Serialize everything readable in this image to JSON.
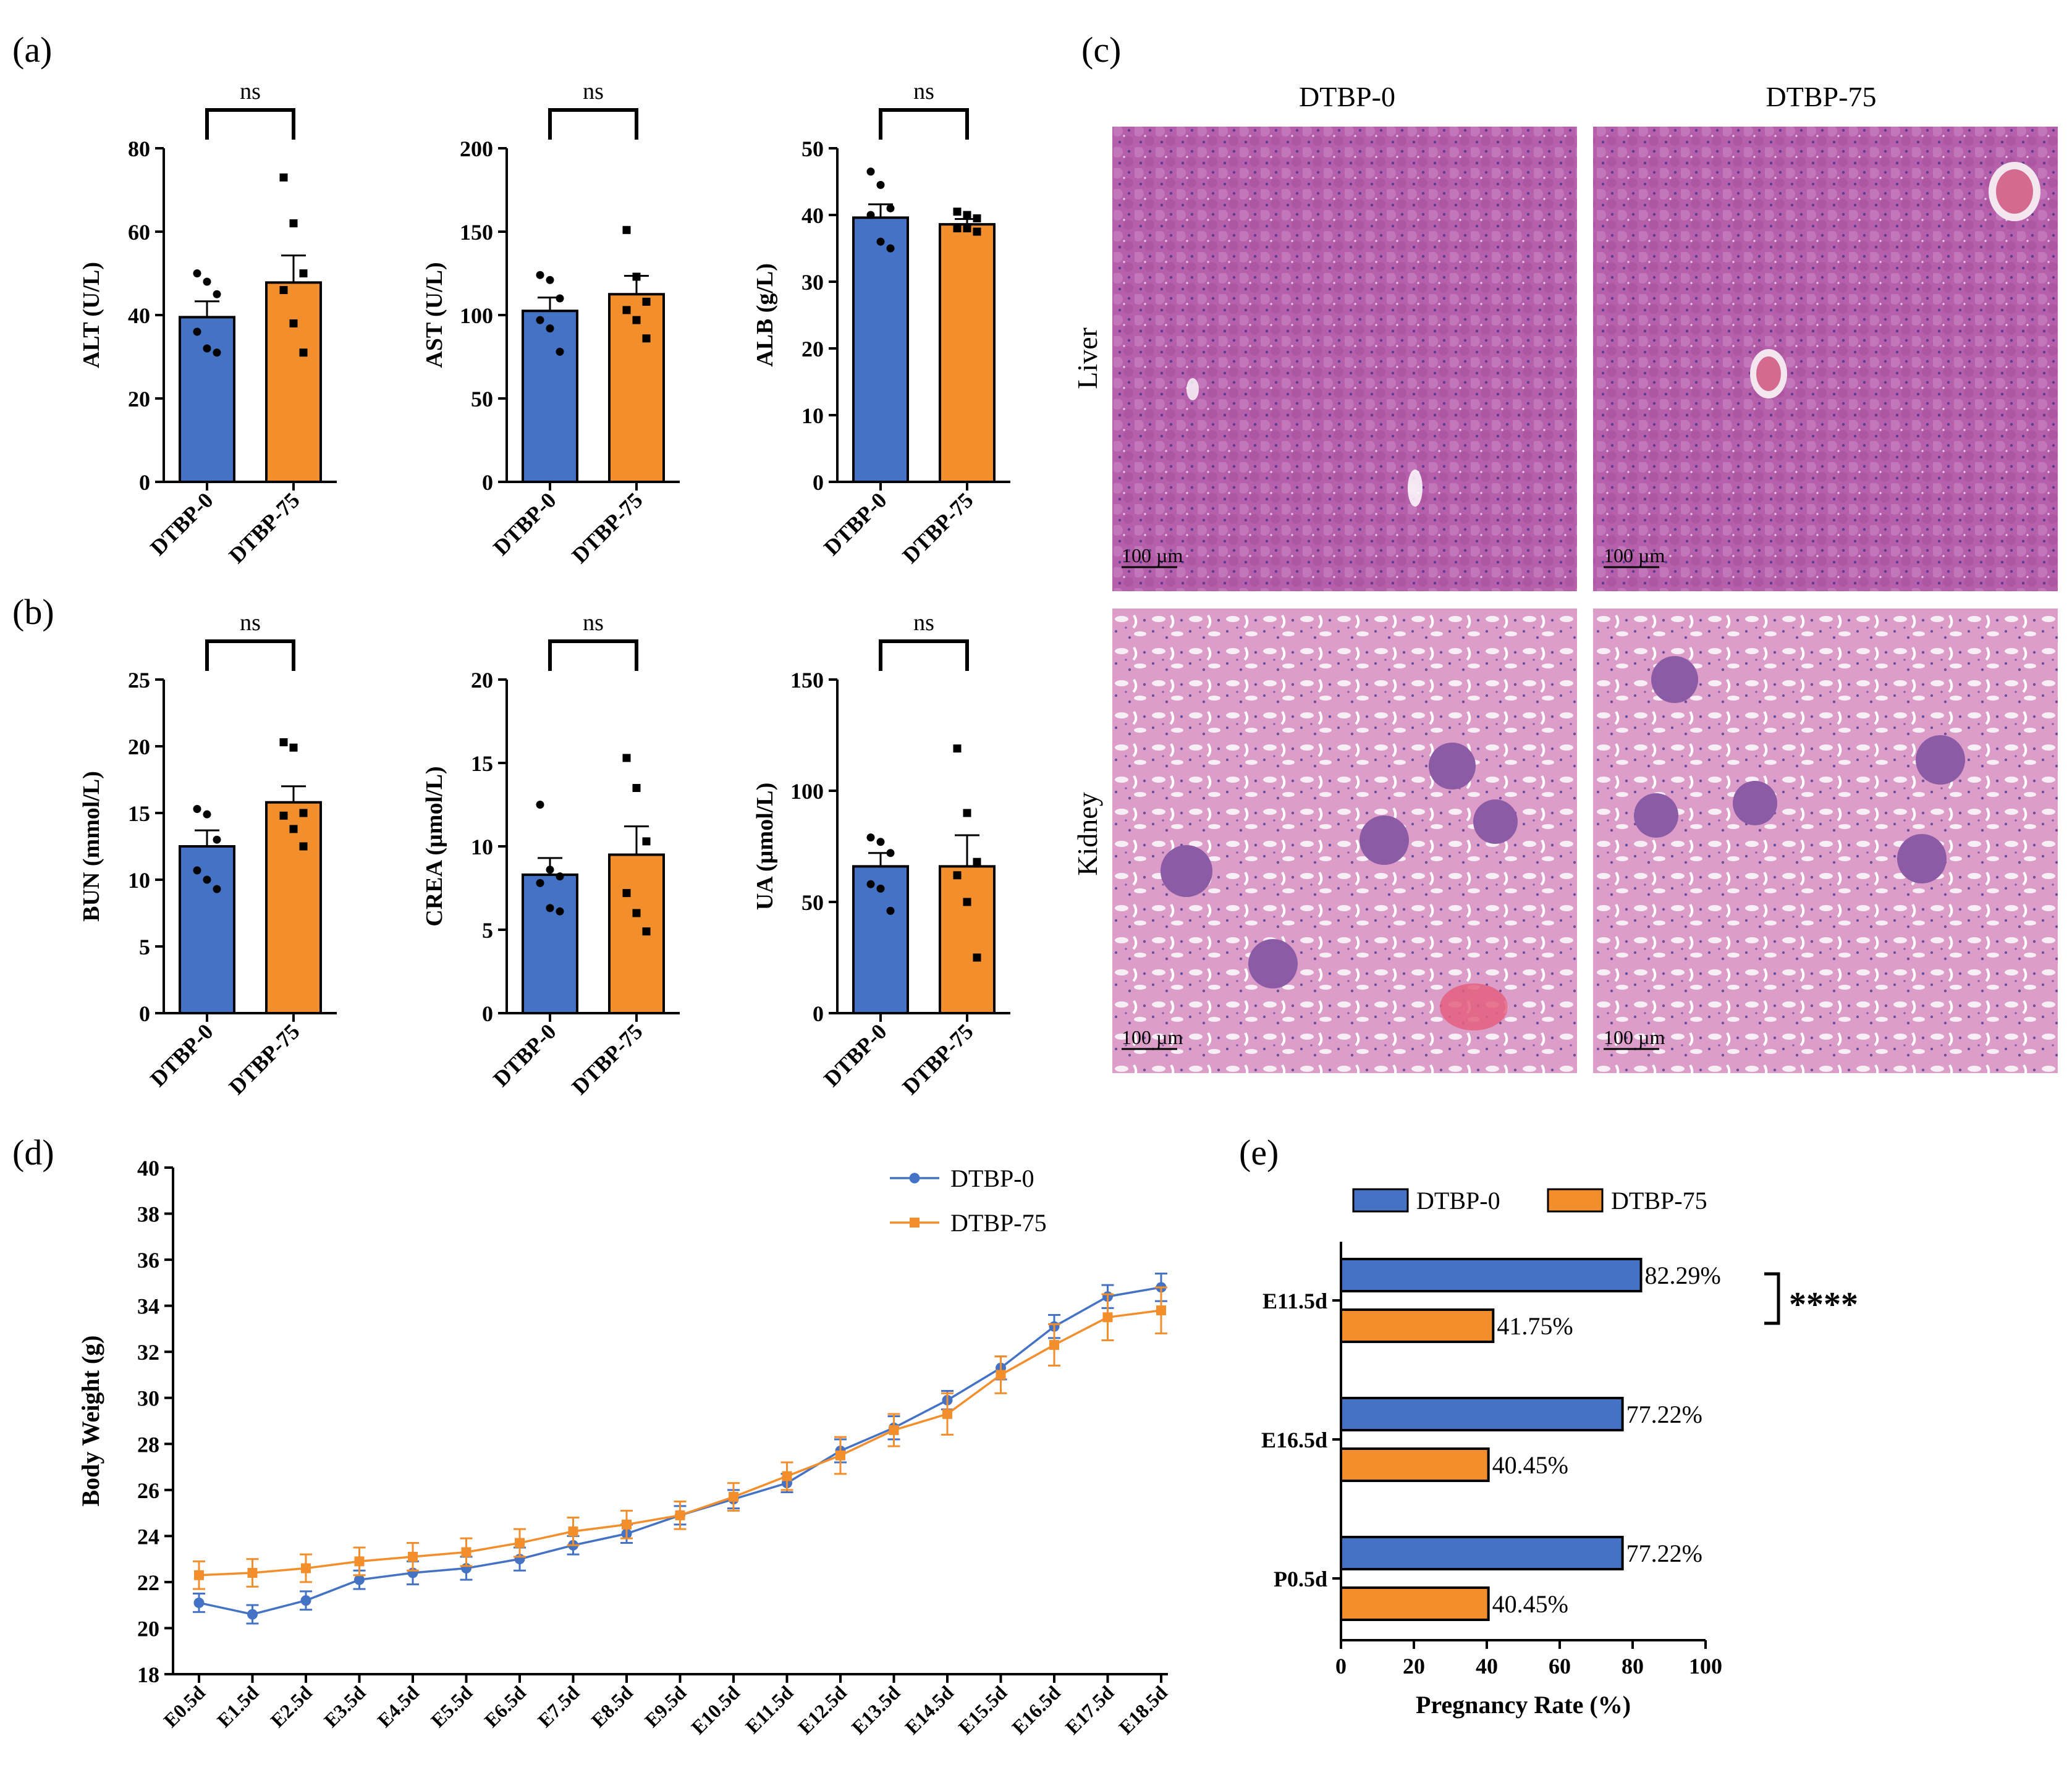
{
  "colors": {
    "blue": "#4472C4",
    "orange": "#F28E2B",
    "axis": "#000000",
    "tissue": "#B15FA8"
  },
  "panel_labels": {
    "a": "(a)",
    "b": "(b)",
    "c": "(c)",
    "d": "(d)",
    "e": "(e)"
  },
  "histology": {
    "columns": [
      "DTBP-0",
      "DTBP-75"
    ],
    "rows": [
      "Liver",
      "Kidney"
    ],
    "scale_bar": "100 µm"
  },
  "chart_data": [
    {
      "id": "alt",
      "panel": "a",
      "type": "bar",
      "title": "",
      "categories": [
        "DTBP-0",
        "DTBP-75"
      ],
      "values": [
        39.5,
        47.8
      ],
      "errors": [
        3.8,
        6.5
      ],
      "points": [
        [
          50,
          48,
          45,
          36,
          32,
          31
        ],
        [
          73,
          62,
          50,
          46,
          38,
          31
        ]
      ],
      "ylabel": "ALT (U/L)",
      "ylim": [
        0,
        80
      ],
      "yticks": [
        0,
        20,
        40,
        60,
        80
      ],
      "sig": "ns"
    },
    {
      "id": "ast",
      "panel": "a",
      "type": "bar",
      "title": "",
      "categories": [
        "DTBP-0",
        "DTBP-75"
      ],
      "values": [
        102.5,
        112.5
      ],
      "errors": [
        8,
        11
      ],
      "points": [
        [
          124,
          121,
          110,
          97,
          92,
          78
        ],
        [
          151,
          123,
          108,
          103,
          97,
          86
        ]
      ],
      "ylabel": "AST (U/L)",
      "ylim": [
        0,
        200
      ],
      "yticks": [
        0,
        50,
        100,
        150,
        200
      ],
      "sig": "ns"
    },
    {
      "id": "alb",
      "panel": "a",
      "type": "bar",
      "title": "",
      "categories": [
        "DTBP-0",
        "DTBP-75"
      ],
      "values": [
        39.6,
        38.6
      ],
      "errors": [
        2.0,
        0.8
      ],
      "points": [
        [
          46.5,
          44.5,
          41,
          40,
          36,
          35
        ],
        [
          40.5,
          40,
          39.5,
          38,
          38,
          37.5
        ]
      ],
      "ylabel": "ALB (g/L)",
      "ylim": [
        0,
        50
      ],
      "yticks": [
        0,
        10,
        20,
        30,
        40,
        50
      ],
      "sig": "ns"
    },
    {
      "id": "bun",
      "panel": "b",
      "type": "bar",
      "title": "",
      "categories": [
        "DTBP-0",
        "DTBP-75"
      ],
      "values": [
        12.5,
        15.8
      ],
      "errors": [
        1.2,
        1.2
      ],
      "points": [
        [
          15.3,
          14.9,
          13,
          10.7,
          10,
          9.3
        ],
        [
          20.3,
          19.9,
          15,
          14.8,
          13.8,
          12.5
        ]
      ],
      "ylabel": "BUN (mmol/L)",
      "ylim": [
        0,
        25
      ],
      "yticks": [
        0,
        5,
        10,
        15,
        20,
        25
      ],
      "sig": "ns"
    },
    {
      "id": "crea",
      "panel": "b",
      "type": "bar",
      "title": "",
      "categories": [
        "DTBP-0",
        "DTBP-75"
      ],
      "values": [
        8.3,
        9.5
      ],
      "errors": [
        1.0,
        1.7
      ],
      "points": [
        [
          12.5,
          8.6,
          8.2,
          7.8,
          6.3,
          6.1
        ],
        [
          15.3,
          13.5,
          10.3,
          7.2,
          6,
          4.9
        ]
      ],
      "ylabel": "CREA (µmol/L)",
      "ylim": [
        0,
        20
      ],
      "yticks": [
        0,
        5,
        10,
        15,
        20
      ],
      "sig": "ns"
    },
    {
      "id": "ua",
      "panel": "b",
      "type": "bar",
      "title": "",
      "categories": [
        "DTBP-0",
        "DTBP-75"
      ],
      "values": [
        66,
        66
      ],
      "errors": [
        6,
        14
      ],
      "points": [
        [
          79,
          77,
          72,
          58,
          56,
          46
        ],
        [
          119,
          90,
          68,
          62,
          50,
          25
        ]
      ],
      "ylabel": "UA (µmol/L)",
      "ylim": [
        0,
        150
      ],
      "yticks": [
        0,
        50,
        100,
        150
      ],
      "sig": "ns"
    },
    {
      "id": "body_weight",
      "panel": "d",
      "type": "line",
      "title": "",
      "x": [
        "E0.5d",
        "E1.5d",
        "E2.5d",
        "E3.5d",
        "E4.5d",
        "E5.5d",
        "E6.5d",
        "E7.5d",
        "E8.5d",
        "E9.5d",
        "E10.5d",
        "E11.5d",
        "E12.5d",
        "E13.5d",
        "E14.5d",
        "E15.5d",
        "E16.5d",
        "E17.5d",
        "E18.5d"
      ],
      "series": [
        {
          "name": "DTBP-0",
          "values": [
            21.1,
            20.6,
            21.2,
            22.1,
            22.4,
            22.6,
            23.0,
            23.6,
            24.1,
            24.9,
            25.6,
            26.3,
            27.7,
            28.7,
            29.9,
            31.3,
            33.1,
            34.4,
            34.8
          ],
          "errors": [
            0.4,
            0.4,
            0.4,
            0.4,
            0.5,
            0.5,
            0.5,
            0.4,
            0.4,
            0.4,
            0.4,
            0.4,
            0.5,
            0.5,
            0.4,
            0.5,
            0.5,
            0.5,
            0.6
          ]
        },
        {
          "name": "DTBP-75",
          "values": [
            22.3,
            22.4,
            22.6,
            22.9,
            23.1,
            23.3,
            23.7,
            24.2,
            24.5,
            24.9,
            25.7,
            26.6,
            27.5,
            28.6,
            29.3,
            31.0,
            32.3,
            33.5,
            33.8
          ],
          "errors": [
            0.6,
            0.6,
            0.6,
            0.6,
            0.6,
            0.6,
            0.6,
            0.6,
            0.6,
            0.6,
            0.6,
            0.6,
            0.8,
            0.7,
            0.9,
            0.8,
            0.9,
            1.0,
            1.0
          ]
        }
      ],
      "ylabel": "Body Weight (g)",
      "xlabel": "",
      "ylim": [
        18,
        40
      ],
      "yticks": [
        18,
        20,
        22,
        24,
        26,
        28,
        30,
        32,
        34,
        36,
        38,
        40
      ],
      "legend": "top-right"
    },
    {
      "id": "pregnancy_rate",
      "panel": "e",
      "type": "bar",
      "orientation": "horizontal",
      "title": "",
      "categories": [
        "E11.5d",
        "E16.5d",
        "P0.5d"
      ],
      "series": [
        {
          "name": "DTBP-0",
          "values": [
            82.29,
            77.22,
            77.22
          ],
          "labels": [
            "82.29%",
            "77.22%",
            "77.22%"
          ]
        },
        {
          "name": "DTBP-75",
          "values": [
            41.75,
            40.45,
            40.45
          ],
          "labels": [
            "41.75%",
            "40.45%",
            "40.45%"
          ]
        }
      ],
      "xlabel": "Pregnancy Rate (%)",
      "xlim": [
        0,
        100
      ],
      "xticks": [
        0,
        20,
        40,
        60,
        80,
        100
      ],
      "legend": "top",
      "sig": "****"
    }
  ]
}
